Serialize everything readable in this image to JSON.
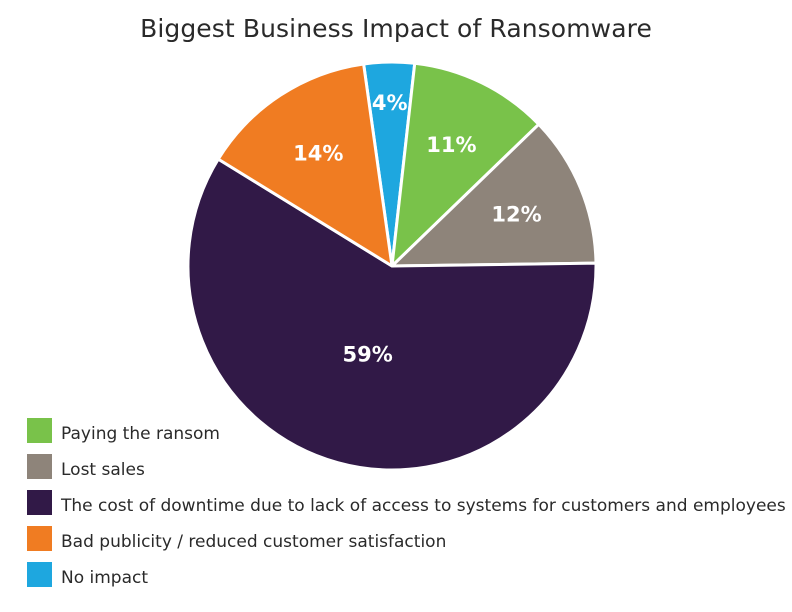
{
  "chart_data": {
    "type": "pie",
    "title": "Biggest Business Impact of Ransomware",
    "slices": [
      {
        "label": "No impact",
        "value": 4,
        "display": "4%",
        "color": "#1ea7df"
      },
      {
        "label": "Paying the ransom",
        "value": 11,
        "display": "11%",
        "color": "#79c24a"
      },
      {
        "label": "Lost sales",
        "value": 12,
        "display": "12%",
        "color": "#8e847a"
      },
      {
        "label": "The cost of downtime due to lack of access to systems for customers and employees",
        "value": 59,
        "display": "59%",
        "color": "#311947"
      },
      {
        "label": "Bad publicity / reduced customer satisfaction",
        "value": 14,
        "display": "14%",
        "color": "#f07c22"
      }
    ],
    "legend": {
      "placement": "bottom-left",
      "order": [
        "Paying the ransom",
        "Lost sales",
        "The cost of downtime due to lack of access to systems for customers and employees",
        "Bad publicity / reduced customer satisfaction",
        "No impact"
      ]
    }
  }
}
